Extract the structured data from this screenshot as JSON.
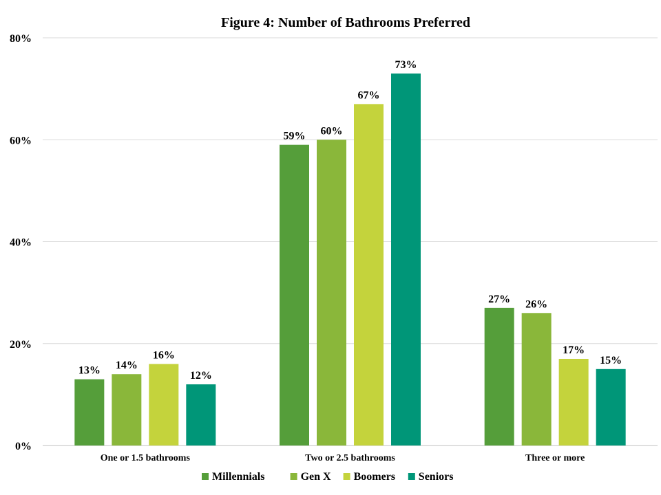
{
  "chart_data": {
    "type": "bar",
    "title": "Figure 4: Number of Bathrooms Preferred",
    "xlabel": "",
    "ylabel": "",
    "ylim": [
      0,
      80
    ],
    "yticks": [
      "0%",
      "20%",
      "40%",
      "60%",
      "80%"
    ],
    "ytick_values": [
      0,
      20,
      40,
      60,
      80
    ],
    "grid": true,
    "legend_position": "bottom",
    "categories": [
      "One or 1.5 bathrooms",
      "Two or 2.5 bathrooms",
      "Three or more"
    ],
    "series": [
      {
        "name": "Millennials",
        "color": "#559E3A",
        "values": [
          13,
          59,
          27
        ],
        "labels": [
          "13%",
          "59%",
          "27%"
        ]
      },
      {
        "name": "Gen X",
        "color": "#8AB73A",
        "values": [
          14,
          60,
          26
        ],
        "labels": [
          "14%",
          "60%",
          "26%"
        ]
      },
      {
        "name": "Boomers",
        "color": "#C4D33C",
        "values": [
          16,
          67,
          17
        ],
        "labels": [
          "16%",
          "67%",
          "17%"
        ]
      },
      {
        "name": "Seniors",
        "color": "#009678",
        "values": [
          12,
          73,
          15
        ],
        "labels": [
          "12%",
          "73%",
          "15%"
        ]
      }
    ]
  }
}
